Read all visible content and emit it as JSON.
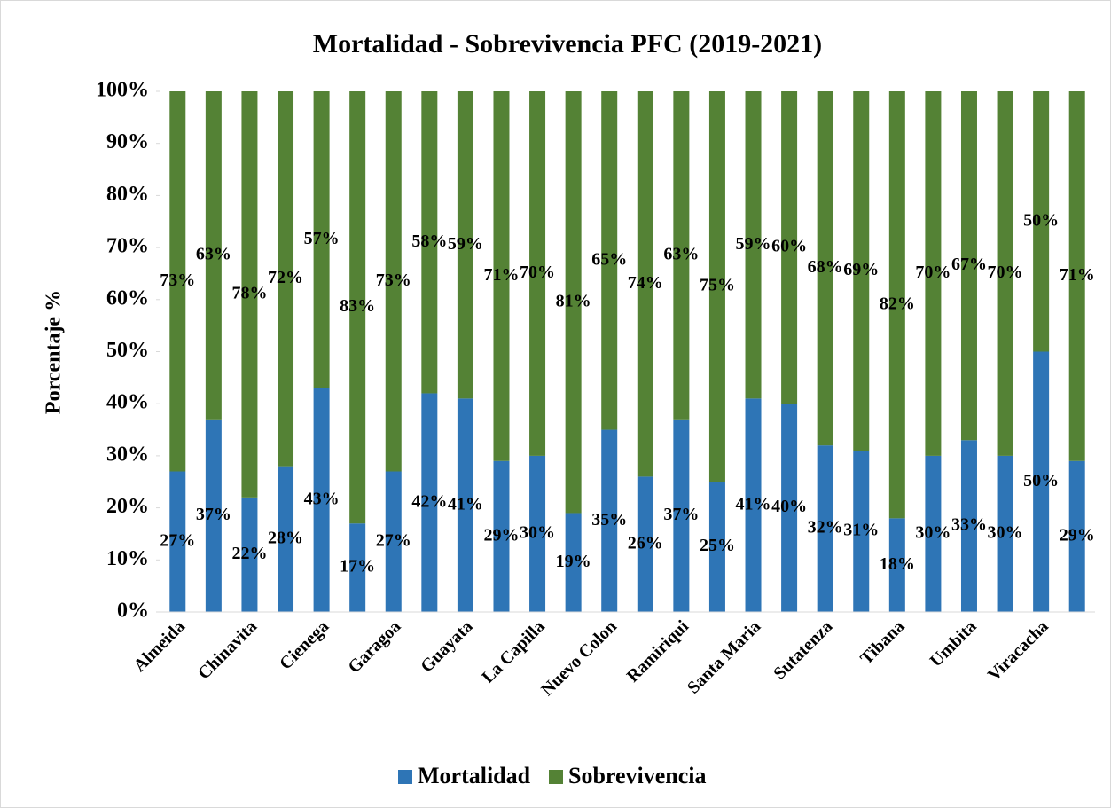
{
  "chart_data": {
    "type": "stacked_bar",
    "title": "Mortalidad - Sobrevivencia PFC (2019-2021)",
    "y_label": "Porcentaje %",
    "categories": [
      "Almeida",
      null,
      "Chinavita",
      null,
      "Cienega",
      null,
      "Garagoa",
      null,
      "Guayata",
      null,
      "La Capilla",
      null,
      "Nuevo Colon",
      null,
      "Ramiriqui",
      null,
      "Santa Maria",
      null,
      "Sutatenza",
      null,
      "Tibana",
      null,
      "Umbita",
      null,
      "Viracacha",
      null
    ],
    "series": [
      {
        "name": "Mortalidad",
        "color": "#2e75b6",
        "values": [
          27,
          37,
          22,
          28,
          43,
          17,
          27,
          42,
          41,
          29,
          30,
          19,
          35,
          26,
          37,
          25,
          41,
          40,
          32,
          31,
          18,
          30,
          33,
          30,
          50,
          29
        ],
        "value_labels": [
          "27%",
          "37%",
          "22%",
          "28%",
          "43%",
          "17%",
          "27%",
          "42%",
          "41%",
          "29%",
          "30%",
          "19%",
          "35%",
          "26%",
          "37%",
          "25%",
          "41%",
          "40%",
          "32%",
          "31%",
          "18%",
          "30%",
          "33%",
          "30%",
          "50%",
          "29%"
        ]
      },
      {
        "name": "Sobrevivencia",
        "color": "#548235",
        "values": [
          73,
          63,
          78,
          72,
          57,
          83,
          73,
          58,
          59,
          71,
          70,
          81,
          65,
          74,
          63,
          75,
          59,
          60,
          68,
          69,
          82,
          70,
          67,
          70,
          50,
          71
        ],
        "value_labels": [
          "73%",
          "63%",
          "78%",
          "72%",
          "57%",
          "83%",
          "73%",
          "58%",
          "59%",
          "71%",
          "70%",
          "81%",
          "65%",
          "74%",
          "63%",
          "75%",
          "59%",
          "60%",
          "68%",
          "69%",
          "82%",
          "70%",
          "67%",
          "70%",
          "50%",
          "71%"
        ]
      }
    ],
    "ylim": [
      0,
      100
    ],
    "yticks": [
      {
        "value": 0,
        "label": "0%"
      },
      {
        "value": 10,
        "label": "10%"
      },
      {
        "value": 20,
        "label": "20%"
      },
      {
        "value": 30,
        "label": "30%"
      },
      {
        "value": 40,
        "label": "40%"
      },
      {
        "value": 50,
        "label": "50%"
      },
      {
        "value": 60,
        "label": "60%"
      },
      {
        "value": 70,
        "label": "70%"
      },
      {
        "value": 80,
        "label": "80%"
      },
      {
        "value": 90,
        "label": "90%"
      },
      {
        "value": 100,
        "label": "100%"
      }
    ],
    "legend": "bottom"
  }
}
